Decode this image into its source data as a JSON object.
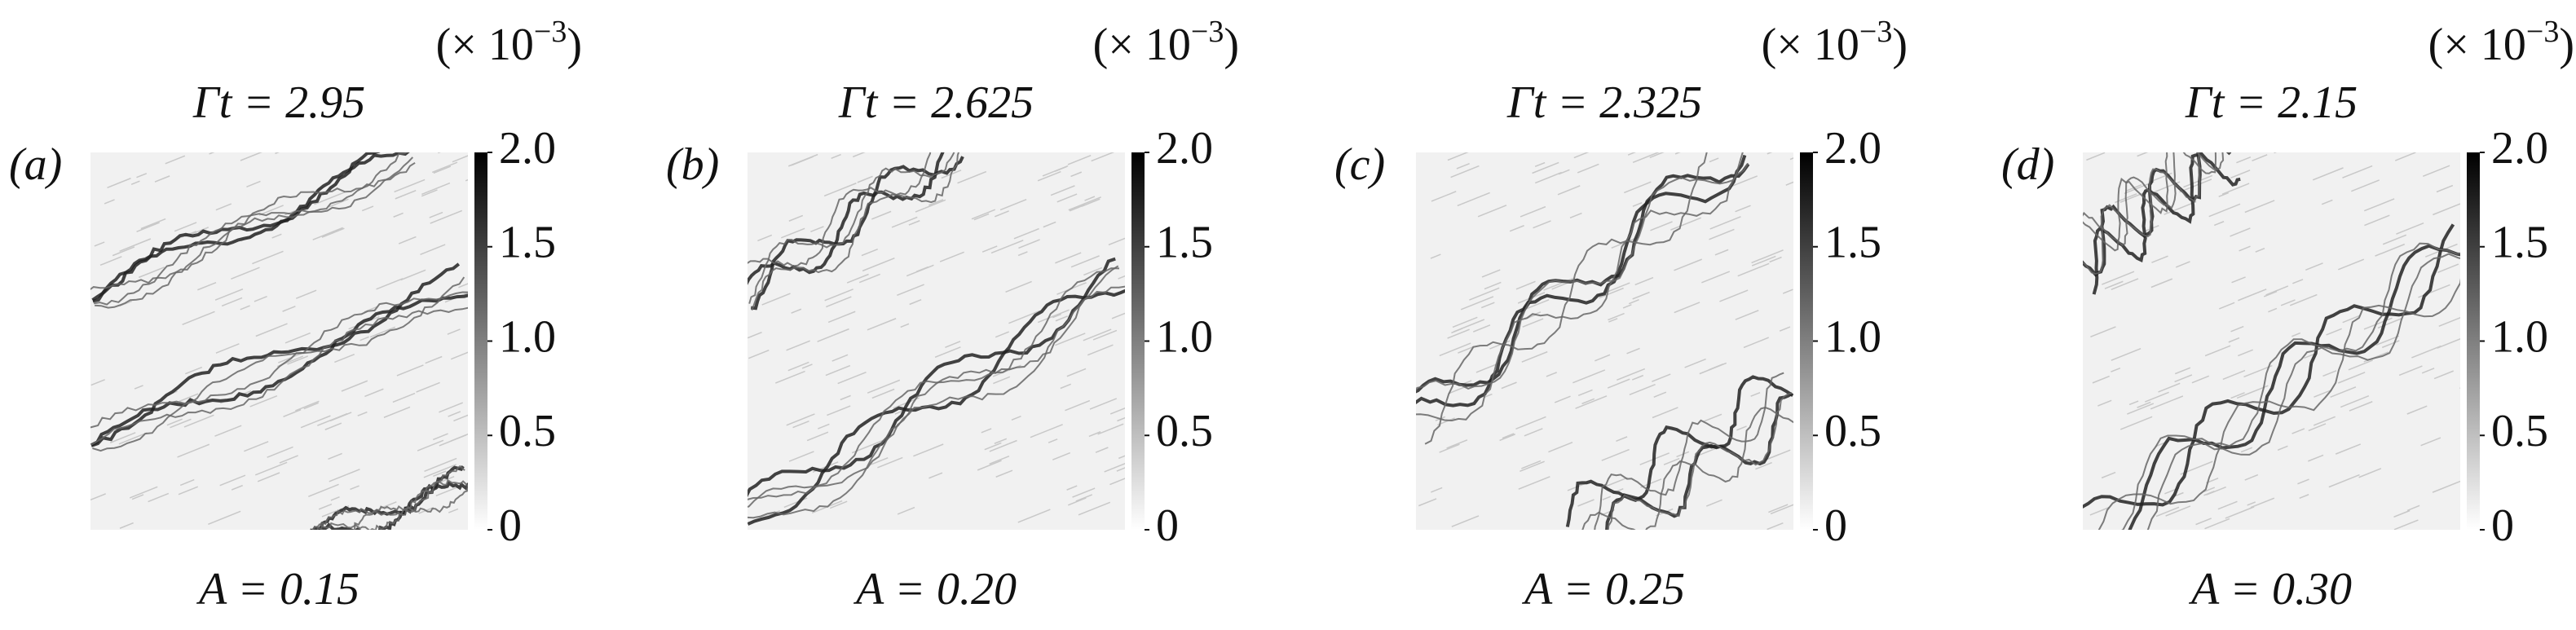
{
  "figure": {
    "multiplier": {
      "base": "(× 10",
      "exponent": "−3",
      "close": ")"
    },
    "clim": [
      0,
      2
    ],
    "colorbar_ticks": [
      0,
      {
        "value": 0.5,
        "label": "0.5"
      },
      {
        "value": 1,
        "label": "1.0"
      },
      {
        "value": 1.5,
        "label": "1.5"
      },
      {
        "value": 2,
        "label": "2.0"
      }
    ],
    "panels": [
      {
        "label": "(a)",
        "title": "Γt = 2.95",
        "caption": "A = 0.15"
      },
      {
        "label": "(b)",
        "title": "Γt = 2.625",
        "caption": "A = 0.20"
      },
      {
        "label": "(c)",
        "title": "Γt = 2.325",
        "caption": "A = 0.25"
      },
      {
        "label": "(d)",
        "title": "Γt = 2.15",
        "caption": "A = 0.30"
      }
    ]
  }
}
